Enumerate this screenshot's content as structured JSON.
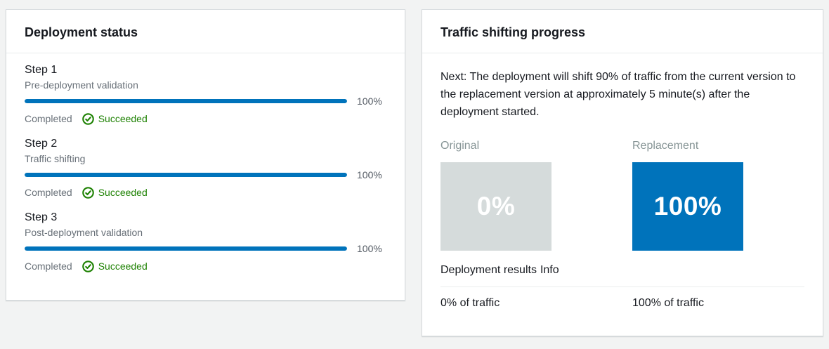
{
  "colors": {
    "accent_blue": "#0073bb",
    "success_green": "#1d8102",
    "original_box_gray": "#d5dbdb",
    "page_background": "#f2f3f3"
  },
  "deployment_status": {
    "title": "Deployment status",
    "steps": [
      {
        "title": "Step 1",
        "description": "Pre-deployment validation",
        "progress_value": 100,
        "progress_label": "100%",
        "state_label": "Completed",
        "result_label": "Succeeded"
      },
      {
        "title": "Step 2",
        "description": "Traffic shifting",
        "progress_value": 100,
        "progress_label": "100%",
        "state_label": "Completed",
        "result_label": "Succeeded"
      },
      {
        "title": "Step 3",
        "description": "Post-deployment validation",
        "progress_value": 100,
        "progress_label": "100%",
        "state_label": "Completed",
        "result_label": "Succeeded"
      }
    ]
  },
  "traffic_shifting": {
    "title": "Traffic shifting progress",
    "next_message": "Next: The deployment will shift 90% of traffic from the current version to the replacement version at approximately 5 minute(s) after the deployment started.",
    "columns": {
      "original": {
        "label": "Original",
        "percent": "0%",
        "traffic": "0% of traffic"
      },
      "replacement": {
        "label": "Replacement",
        "percent": "100%",
        "traffic": "100% of traffic"
      }
    },
    "results_label": "Deployment results",
    "info_label": "Info"
  }
}
